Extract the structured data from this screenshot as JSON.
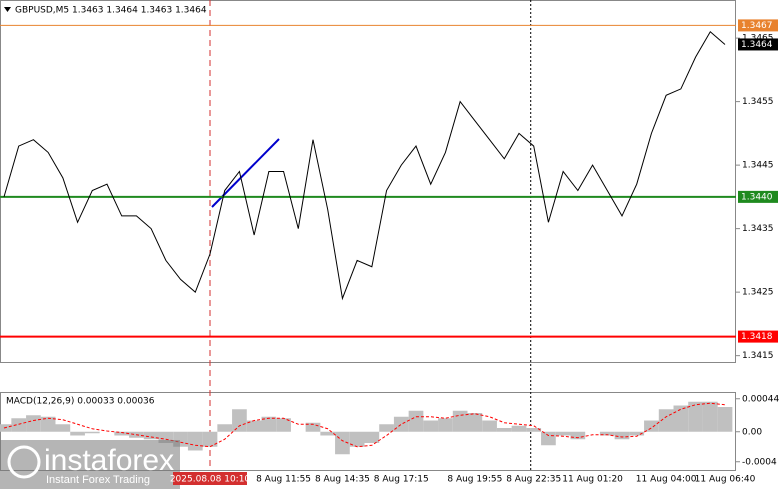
{
  "chart_data": [
    {
      "type": "line",
      "title": "GBPUSD,M5  1.3463 1.3464 1.3463 1.3464",
      "color": "#000000",
      "categories": [
        null,
        null,
        null,
        null,
        null,
        null,
        null,
        null,
        null,
        null,
        null,
        null,
        null,
        null,
        "2025.08.08 10:10",
        null,
        null,
        null,
        null,
        "8 Aug 11:55",
        null,
        null,
        null,
        "8 Aug 14:35",
        null,
        null,
        null,
        "8 Aug 17:15",
        null,
        null,
        null,
        null,
        "8 Aug 19:55",
        null,
        null,
        null,
        "8 Aug 22:35",
        null,
        null,
        null,
        "11 Aug 01:20",
        null,
        null,
        null,
        null,
        "11 Aug 04:00",
        null,
        null,
        null,
        "11 Aug 06:40"
      ],
      "cursor_index": 14,
      "values": [
        1.344,
        1.3448,
        1.3449,
        1.3447,
        1.3443,
        1.3436,
        1.3441,
        1.3442,
        1.3437,
        1.3437,
        1.3435,
        1.343,
        1.3427,
        1.3425,
        1.3431,
        1.3441,
        1.3444,
        1.3434,
        1.3444,
        1.3444,
        1.3435,
        1.3449,
        1.3438,
        1.3424,
        1.343,
        1.3429,
        1.3441,
        1.3445,
        1.3448,
        1.3442,
        1.3447,
        1.3455,
        1.3452,
        1.3449,
        1.3446,
        1.345,
        1.3448,
        1.3436,
        1.3444,
        1.3441,
        1.3445,
        1.3441,
        1.3437,
        1.3442,
        1.345,
        1.3456,
        1.3457,
        1.3462,
        1.3466,
        1.3464
      ],
      "ylim": [
        1.3414,
        1.3471
      ],
      "yticks": [
        1.3415,
        1.3425,
        1.3435,
        1.3445,
        1.3455,
        1.3465
      ],
      "levels": [
        {
          "value": 1.3467,
          "label": "1.3467",
          "color": "#e8822e"
        },
        {
          "value": 1.344,
          "label": "1.3440",
          "color": "#1f8a1f"
        },
        {
          "value": 1.3418,
          "label": "1.3418",
          "color": "#ff0000"
        },
        {
          "value": 1.3464,
          "label": "1.3464",
          "color": "#000000"
        }
      ]
    },
    {
      "type": "bar",
      "title": "MACD(12,26,9) 0.00033 0.00036",
      "color": "#c0c0c0",
      "signal_color": "#ff0000",
      "values": [
        0.0001,
        0.00018,
        0.00022,
        0.0002,
        0.0001,
        -5e-05,
        -2e-05,
        0,
        -5e-05,
        -8e-05,
        -0.0001,
        -0.00015,
        -0.0002,
        -0.00025,
        -0.0002,
        0.0001,
        0.0003,
        0.00015,
        0.0002,
        0.00018,
        0,
        0.00012,
        -5e-05,
        -0.0003,
        -0.0002,
        -0.00015,
        0.0001,
        0.0002,
        0.00028,
        0.00015,
        0.00018,
        0.00028,
        0.00025,
        0.00015,
        5e-05,
        8e-05,
        5e-05,
        -0.00018,
        -5e-05,
        -0.0001,
        0,
        -5e-05,
        -0.0001,
        -5e-05,
        0.00015,
        0.0003,
        0.00035,
        0.0004,
        0.0004,
        0.00033
      ],
      "signal": [
        5e-05,
        0.0001,
        0.00015,
        0.00018,
        0.00016,
        0.0001,
        4e-05,
        1e-05,
        -1e-05,
        -4e-05,
        -7e-05,
        -0.0001,
        -0.00014,
        -0.00018,
        -0.0002,
        -0.0001,
        8e-05,
        0.00015,
        0.00018,
        0.00018,
        0.0001,
        0.0001,
        4e-05,
        -0.00012,
        -0.0002,
        -0.00018,
        -5e-05,
        0.0001,
        0.0002,
        0.0002,
        0.00018,
        0.00022,
        0.00024,
        0.0002,
        0.00012,
        0.0001,
        8e-05,
        -5e-05,
        -6e-05,
        -8e-05,
        -4e-05,
        -4e-05,
        -7e-05,
        -6e-05,
        5e-05,
        0.0002,
        0.0003,
        0.00036,
        0.00038,
        0.00036
      ],
      "ylim": [
        -0.00051,
        0.00053
      ],
      "yticks": [
        0.00044,
        {
          "value": 0,
          "label": "0.00"
        },
        -0.0004
      ]
    }
  ],
  "watermark": {
    "brand": "instaforex",
    "tagline": "Instant Forex Trading"
  }
}
